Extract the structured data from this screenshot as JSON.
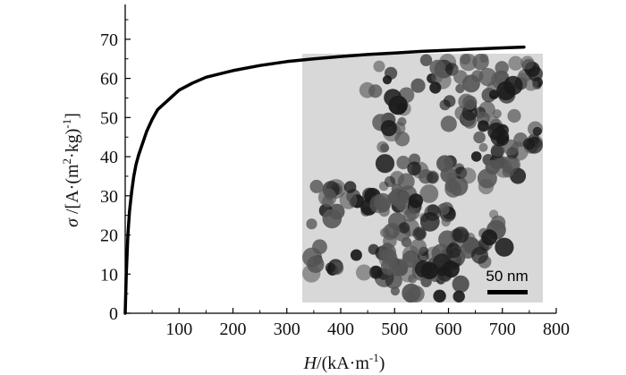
{
  "chart_data": {
    "type": "line",
    "xlabel_italic": "H",
    "xlabel_rest": "/(kA·m",
    "xlabel_sup": "-1",
    "xlabel_end": ")",
    "ylabel_italic": "σ",
    "ylabel_rest": " /[A·(m",
    "ylabel_sup1": "2",
    "ylabel_mid": "·kg)",
    "ylabel_sup2": "-1",
    "ylabel_end": "]",
    "xlim": [
      0,
      800
    ],
    "ylim": [
      0,
      75
    ],
    "x_ticks": [
      "100",
      "200",
      "300",
      "400",
      "500",
      "600",
      "700",
      "800"
    ],
    "y_ticks": [
      "0",
      "10",
      "20",
      "30",
      "40",
      "50",
      "60",
      "70"
    ],
    "grid": false,
    "series": [
      {
        "x": [
          0,
          2,
          5,
          8,
          12,
          16,
          20,
          25,
          30,
          40,
          50,
          60,
          80,
          100,
          125,
          150,
          200,
          250,
          300,
          350,
          400,
          450,
          500,
          550,
          600,
          650,
          700,
          740
        ],
        "y": [
          0,
          10,
          20,
          26,
          31,
          35,
          38,
          40.5,
          42.5,
          46.5,
          49.5,
          52,
          54.5,
          57,
          58.8,
          60.3,
          62,
          63.3,
          64.3,
          65,
          65.6,
          66.1,
          66.5,
          66.9,
          67.2,
          67.5,
          67.8,
          68
        ]
      }
    ],
    "inset": {
      "scale_bar_label": "50 nm"
    }
  },
  "colors": {
    "line": "#000000",
    "inset_background": "#d8d8d8",
    "particle_dark": "#1a1a1a",
    "particle_mid": "#555555"
  }
}
